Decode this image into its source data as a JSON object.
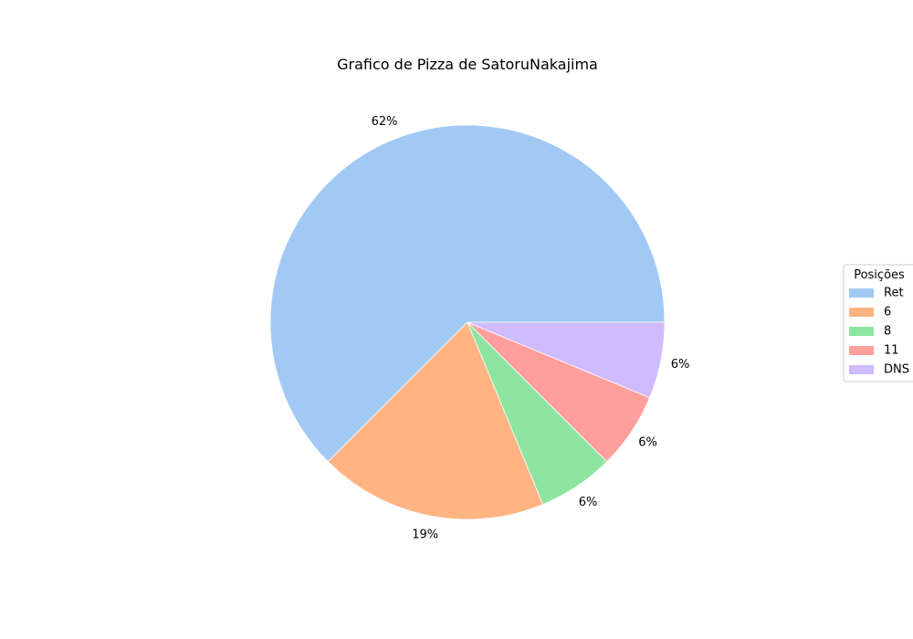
{
  "chart_data": {
    "type": "pie",
    "title": "Grafico de Pizza de SatoruNakajima",
    "categories": [
      "Ret",
      "6",
      "8",
      "11",
      "DNS"
    ],
    "values": [
      62.5,
      18.75,
      6.25,
      6.25,
      6.25
    ],
    "labels": [
      "62%",
      "19%",
      "6%",
      "6%",
      "6%"
    ],
    "colors": [
      "#a1c9f4",
      "#ffb482",
      "#8de5a1",
      "#ff9f9b",
      "#d0bbff"
    ],
    "start_angle_deg": 0,
    "direction": "counterclockwise",
    "legend": {
      "title": "Posições",
      "placement": "right"
    }
  }
}
